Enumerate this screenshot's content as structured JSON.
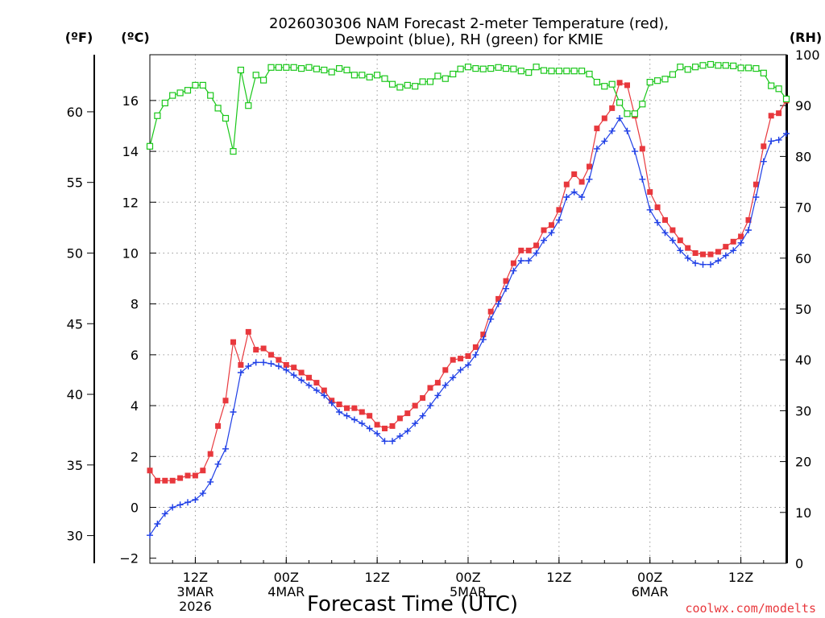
{
  "chart_data": {
    "type": "line",
    "title_line1": "2026030306 NAM Forecast 2-meter Temperature (red),",
    "title_line2": "Dewpoint (blue), RH (green) for KMIE",
    "xlabel": "Forecast Time (UTC)",
    "credit": "coolwx.com/modelts",
    "unit_f": "(ºF)",
    "unit_c": "(ºC)",
    "unit_rh": "(RH)",
    "x_unit": "forecast hours from 06Z 3 MAR 2026",
    "xlim": [
      0,
      84
    ],
    "ylim_c": [
      -2.2,
      17.8
    ],
    "ylim_f": [
      28.04,
      64.04
    ],
    "ylim_rh": [
      0,
      100
    ],
    "c_ticks": [
      {
        "v": -2,
        "label": "−2"
      },
      {
        "v": 0,
        "label": "0"
      },
      {
        "v": 2,
        "label": "2"
      },
      {
        "v": 4,
        "label": "4"
      },
      {
        "v": 6,
        "label": "6"
      },
      {
        "v": 8,
        "label": "8"
      },
      {
        "v": 10,
        "label": "10"
      },
      {
        "v": 12,
        "label": "12"
      },
      {
        "v": 14,
        "label": "14"
      },
      {
        "v": 16,
        "label": "16"
      }
    ],
    "f_ticks": [
      {
        "v": 30,
        "label": "30"
      },
      {
        "v": 35,
        "label": "35"
      },
      {
        "v": 40,
        "label": "40"
      },
      {
        "v": 45,
        "label": "45"
      },
      {
        "v": 50,
        "label": "50"
      },
      {
        "v": 55,
        "label": "55"
      },
      {
        "v": 60,
        "label": "60"
      }
    ],
    "rh_ticks": [
      {
        "v": 0,
        "label": "0"
      },
      {
        "v": 10,
        "label": "10"
      },
      {
        "v": 20,
        "label": "20"
      },
      {
        "v": 30,
        "label": "30"
      },
      {
        "v": 40,
        "label": "40"
      },
      {
        "v": 50,
        "label": "50"
      },
      {
        "v": 60,
        "label": "60"
      },
      {
        "v": 70,
        "label": "70"
      },
      {
        "v": 80,
        "label": "80"
      },
      {
        "v": 90,
        "label": "90"
      },
      {
        "v": 100,
        "label": "100"
      }
    ],
    "x_ticks": [
      {
        "h": 6,
        "lines": [
          "12Z",
          "3MAR",
          "2026"
        ]
      },
      {
        "h": 18,
        "lines": [
          "00Z",
          "4MAR"
        ]
      },
      {
        "h": 30,
        "lines": [
          "12Z"
        ]
      },
      {
        "h": 42,
        "lines": [
          "00Z",
          "5MAR"
        ]
      },
      {
        "h": 54,
        "lines": [
          "12Z"
        ]
      },
      {
        "h": 66,
        "lines": [
          "00Z",
          "6MAR"
        ]
      },
      {
        "h": 78,
        "lines": [
          "12Z"
        ]
      }
    ],
    "series": [
      {
        "name": "2-meter Temperature",
        "unit": "C",
        "color": "#e8383d",
        "marker": "filled-square",
        "x": [
          0,
          1,
          2,
          3,
          4,
          5,
          6,
          7,
          8,
          9,
          10,
          11,
          12,
          13,
          14,
          15,
          16,
          17,
          18,
          19,
          20,
          21,
          22,
          23,
          24,
          25,
          26,
          27,
          28,
          29,
          30,
          31,
          32,
          33,
          34,
          35,
          36,
          37,
          38,
          39,
          40,
          41,
          42,
          43,
          44,
          45,
          46,
          47,
          48,
          49,
          50,
          51,
          52,
          53,
          54,
          55,
          56,
          57,
          58,
          59,
          60,
          61,
          62,
          63,
          64,
          65,
          66,
          67,
          68,
          69,
          70,
          71,
          72,
          73,
          74,
          75,
          76,
          77,
          78,
          79,
          80,
          81,
          82,
          83,
          84
        ],
        "values": [
          1.45,
          1.05,
          1.05,
          1.05,
          1.15,
          1.25,
          1.25,
          1.45,
          2.1,
          3.2,
          4.2,
          6.5,
          5.6,
          6.9,
          6.2,
          6.25,
          6.0,
          5.8,
          5.6,
          5.5,
          5.3,
          5.1,
          4.9,
          4.6,
          4.2,
          4.05,
          3.9,
          3.9,
          3.75,
          3.6,
          3.25,
          3.1,
          3.2,
          3.5,
          3.7,
          4.0,
          4.3,
          4.7,
          4.9,
          5.4,
          5.8,
          5.85,
          5.95,
          6.3,
          6.8,
          7.7,
          8.2,
          8.9,
          9.6,
          10.1,
          10.1,
          10.3,
          10.9,
          11.1,
          11.7,
          12.7,
          13.1,
          12.8,
          13.4,
          14.9,
          15.3,
          15.7,
          16.7,
          16.6,
          15.4,
          14.1,
          12.4,
          11.8,
          11.3,
          10.9,
          10.5,
          10.2,
          10.0,
          9.95,
          9.95,
          10.05,
          10.25,
          10.45,
          10.65,
          11.3,
          12.7,
          14.2,
          15.4,
          15.5,
          16.0
        ]
      },
      {
        "name": "Dewpoint",
        "unit": "C",
        "color": "#1f3fe6",
        "marker": "plus",
        "x": [
          0,
          1,
          2,
          3,
          4,
          5,
          6,
          7,
          8,
          9,
          10,
          11,
          12,
          13,
          14,
          15,
          16,
          17,
          18,
          19,
          20,
          21,
          22,
          23,
          24,
          25,
          26,
          27,
          28,
          29,
          30,
          31,
          32,
          33,
          34,
          35,
          36,
          37,
          38,
          39,
          40,
          41,
          42,
          43,
          44,
          45,
          46,
          47,
          48,
          49,
          50,
          51,
          52,
          53,
          54,
          55,
          56,
          57,
          58,
          59,
          60,
          61,
          62,
          63,
          64,
          65,
          66,
          67,
          68,
          69,
          70,
          71,
          72,
          73,
          74,
          75,
          76,
          77,
          78,
          79,
          80,
          81,
          82,
          83,
          84
        ],
        "values": [
          -1.1,
          -0.65,
          -0.25,
          0.0,
          0.1,
          0.2,
          0.3,
          0.55,
          1.0,
          1.7,
          2.3,
          3.75,
          5.3,
          5.55,
          5.7,
          5.7,
          5.65,
          5.55,
          5.4,
          5.2,
          5.0,
          4.8,
          4.6,
          4.4,
          4.1,
          3.75,
          3.6,
          3.45,
          3.3,
          3.1,
          2.9,
          2.6,
          2.6,
          2.8,
          3.0,
          3.3,
          3.6,
          4.0,
          4.4,
          4.8,
          5.1,
          5.4,
          5.6,
          6.0,
          6.6,
          7.4,
          8.0,
          8.6,
          9.3,
          9.7,
          9.7,
          10.0,
          10.5,
          10.8,
          11.3,
          12.2,
          12.4,
          12.2,
          12.9,
          14.1,
          14.4,
          14.8,
          15.3,
          14.8,
          14.0,
          12.9,
          11.7,
          11.2,
          10.8,
          10.5,
          10.1,
          9.8,
          9.6,
          9.55,
          9.55,
          9.7,
          9.9,
          10.1,
          10.4,
          10.9,
          12.2,
          13.6,
          14.4,
          14.45,
          14.7
        ]
      },
      {
        "name": "RH",
        "unit": "%",
        "color": "#19c719",
        "marker": "open-square",
        "x": [
          0,
          1,
          2,
          3,
          4,
          5,
          6,
          7,
          8,
          9,
          10,
          11,
          12,
          13,
          14,
          15,
          16,
          17,
          18,
          19,
          20,
          21,
          22,
          23,
          24,
          25,
          26,
          27,
          28,
          29,
          30,
          31,
          32,
          33,
          34,
          35,
          36,
          37,
          38,
          39,
          40,
          41,
          42,
          43,
          44,
          45,
          46,
          47,
          48,
          49,
          50,
          51,
          52,
          53,
          54,
          55,
          56,
          57,
          58,
          59,
          60,
          61,
          62,
          63,
          64,
          65,
          66,
          67,
          68,
          69,
          70,
          71,
          72,
          73,
          74,
          75,
          76,
          77,
          78,
          79,
          80,
          81,
          82,
          83,
          84
        ],
        "values": [
          82,
          88,
          90.5,
          92,
          92.5,
          93,
          94,
          94,
          92,
          89.5,
          87.5,
          81,
          97,
          90,
          96,
          95,
          97.5,
          97.5,
          97.5,
          97.5,
          97.3,
          97.5,
          97.2,
          97,
          96.6,
          97.3,
          97,
          96,
          96,
          95.6,
          96,
          95.3,
          94.2,
          93.6,
          94,
          93.8,
          94.7,
          94.7,
          95.8,
          95.3,
          96.2,
          97.2,
          97.6,
          97.3,
          97.2,
          97.3,
          97.5,
          97.3,
          97.2,
          96.8,
          96.5,
          97.6,
          96.9,
          96.8,
          96.8,
          96.8,
          96.8,
          96.8,
          96.2,
          94.6,
          93.8,
          94.2,
          90.6,
          88.4,
          88.4,
          90.3,
          94.6,
          94.9,
          95.2,
          96.1,
          97.6,
          97.1,
          97.6,
          97.9,
          98.1,
          97.9,
          97.9,
          97.8,
          97.4,
          97.4,
          97.3,
          96.4,
          93.9,
          93.3,
          91.3
        ]
      }
    ]
  }
}
